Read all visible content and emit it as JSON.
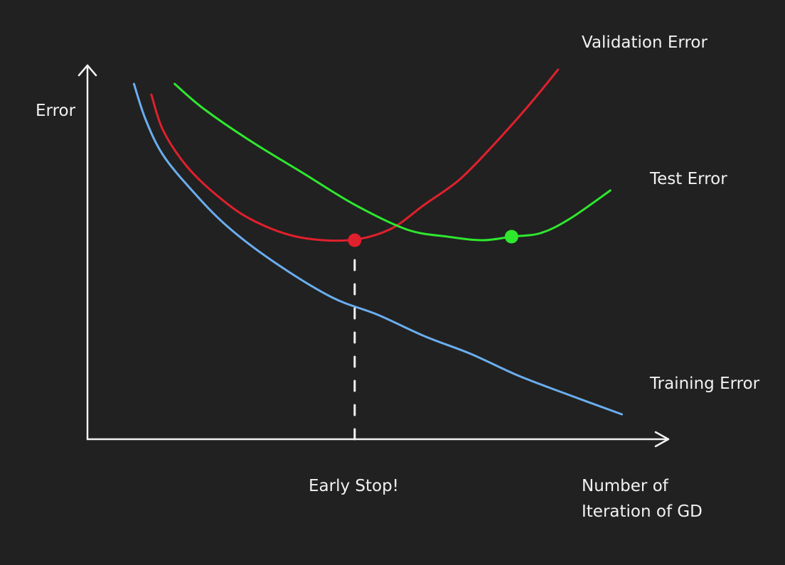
{
  "chart_data": {
    "type": "line",
    "title": "",
    "ylabel": "Error",
    "xlabel": "Number of\nIteration of GD",
    "xlim": [
      0,
      100
    ],
    "ylim": [
      0,
      100
    ],
    "ticks": "none",
    "grid": false,
    "legend": "none (series labels placed at line ends)",
    "series": [
      {
        "name": "Training Error",
        "color": "#6aaef0",
        "x": [
          8,
          10,
          13,
          18,
          24,
          32,
          42,
          50,
          58,
          66,
          74,
          82,
          92
        ],
        "y": [
          100,
          90,
          80,
          70,
          60,
          50,
          40,
          35,
          29,
          24,
          18,
          13,
          7
        ]
      },
      {
        "name": "Validation Error",
        "color": "#e0202c",
        "x": [
          11,
          13,
          17,
          22,
          28,
          36,
          45,
          52,
          58,
          64,
          70,
          76,
          81
        ],
        "y": [
          97,
          87,
          77,
          69,
          62,
          57,
          56,
          59,
          66,
          73,
          83,
          94,
          104
        ]
      },
      {
        "name": "Test Error",
        "color": "#2ee82e",
        "x": [
          15,
          20,
          28,
          37,
          46,
          55,
          62,
          68,
          73,
          78,
          83,
          90
        ],
        "y": [
          100,
          93,
          84,
          75,
          66,
          59,
          57,
          56,
          57,
          58,
          62,
          70
        ]
      }
    ],
    "markers": [
      {
        "series": "Validation Error",
        "x": 46,
        "y": 56,
        "color": "#e0202c"
      },
      {
        "series": "Test Error",
        "x": 73,
        "y": 57,
        "color": "#2ee82e"
      }
    ],
    "annotations": [
      {
        "text": "Early Stop!",
        "x": 46,
        "style": "vertical dashed line from the validation minimum to the x-axis"
      }
    ]
  }
}
